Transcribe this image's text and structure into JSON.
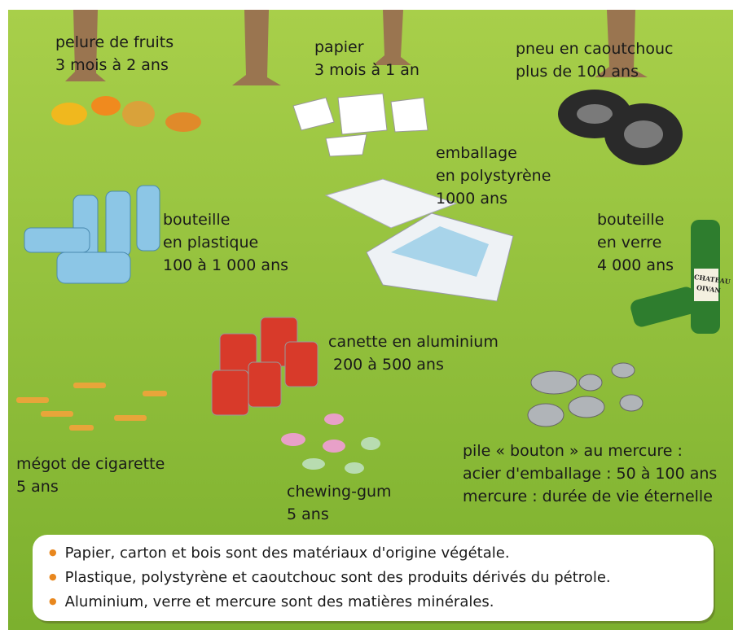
{
  "items": [
    {
      "lines": [
        "pelure de fruits",
        "3 mois à 2 ans"
      ]
    },
    {
      "lines": [
        "papier",
        "3 mois à 1 an"
      ]
    },
    {
      "lines": [
        "pneu en caoutchouc",
        "plus de 100 ans"
      ]
    },
    {
      "lines": [
        "emballage",
        "en polystyrène",
        "1000 ans"
      ]
    },
    {
      "lines": [
        "bouteille",
        "en plastique",
        "100 à 1 000 ans"
      ]
    },
    {
      "lines": [
        "bouteille",
        "en verre",
        "4 000 ans"
      ]
    },
    {
      "lines": [
        "canette en aluminium",
        "200 à 500 ans"
      ]
    },
    {
      "lines": [
        "mégot de cigarette",
        "5 ans"
      ]
    },
    {
      "lines": [
        "chewing-gum",
        "5 ans"
      ]
    },
    {
      "lines": [
        "pile « bouton » au mercure :",
        "acier d'emballage : 50 à 100 ans",
        "mercure : durée de vie éternelle"
      ]
    }
  ],
  "bottle_label": [
    "CHATEAU",
    "OIVAN"
  ],
  "notes": [
    "Papier, carton et bois sont des matériaux d'origine végétale.",
    "Plastique, polystyrène et caoutchouc sont des produits dérivés du pétrole.",
    "Aluminium, verre et mercure sont des matières minérales."
  ]
}
